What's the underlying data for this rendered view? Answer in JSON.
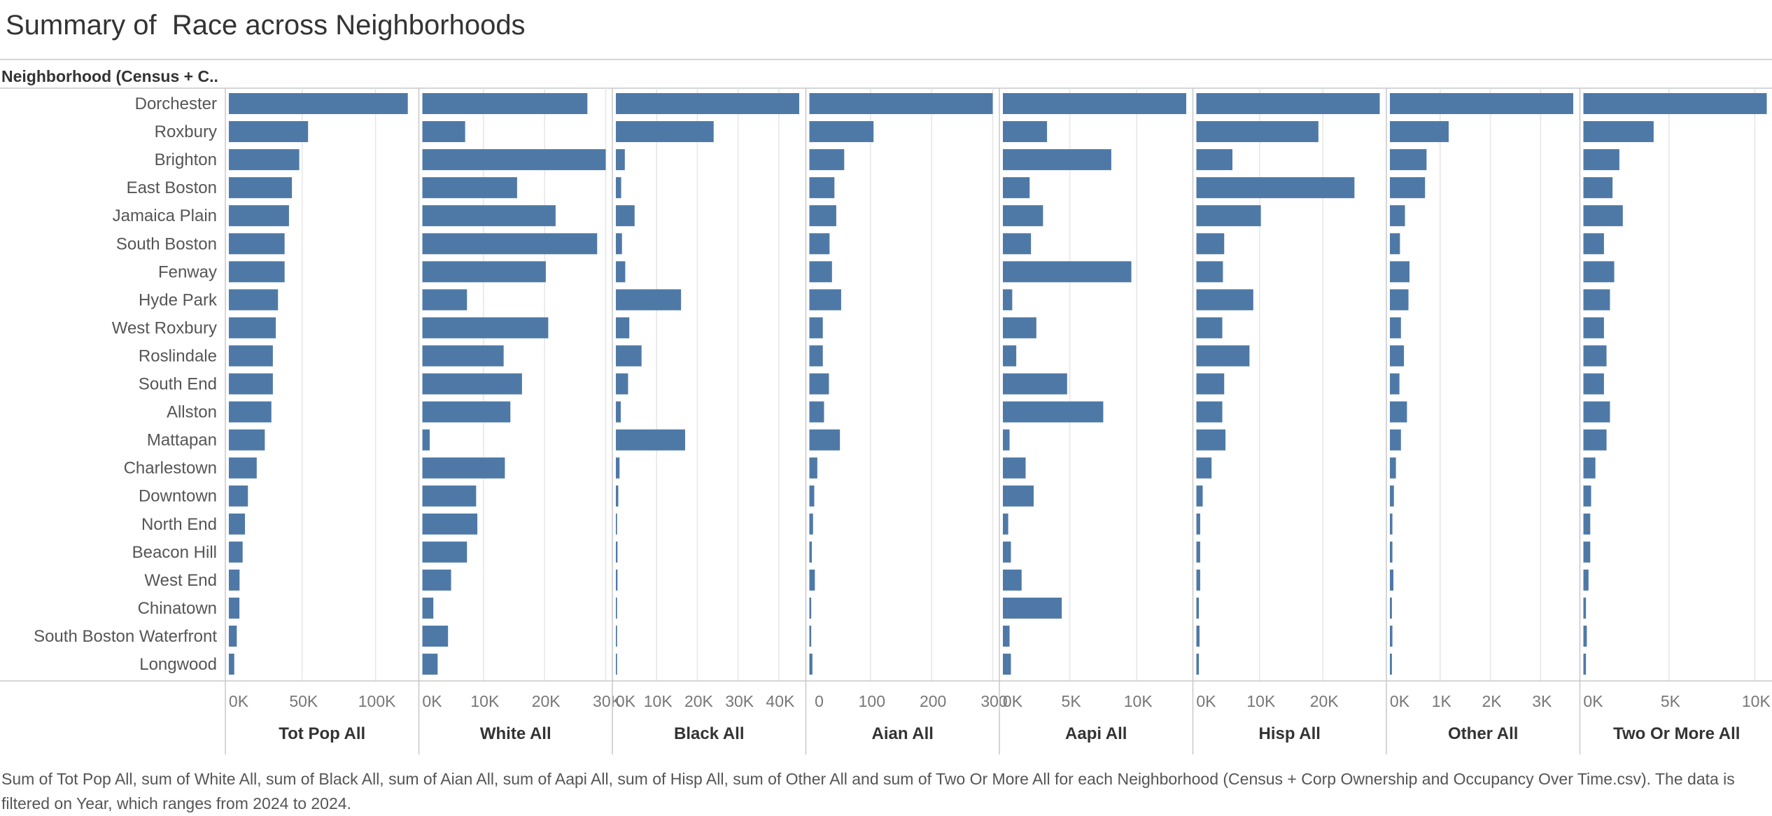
{
  "title": "Summary of  Race across Neighborhoods",
  "caption": "Sum of Tot Pop All, sum of White All, sum of Black All, sum of Aian All, sum of Aapi All, sum of Hisp All, sum of Other All and sum of Two Or More All for each Neighborhood (Census + Corp Ownership and Occupancy Over Time.csv). The data is filtered on Year, which ranges from 2024 to 2024.",
  "colors": {
    "bar": "#4e79a7",
    "grid": "#e6e6e6",
    "axis": "#c8c8c8"
  },
  "chart_data": {
    "type": "bar",
    "orientation": "horizontal",
    "row_header": "Neighborhood (Census + C..",
    "categories": [
      "Dorchester",
      "Roxbury",
      "Brighton",
      "East Boston",
      "Jamaica Plain",
      "South Boston",
      "Fenway",
      "Hyde Park",
      "West Roxbury",
      "Roslindale",
      "South End",
      "Allston",
      "Mattapan",
      "Charlestown",
      "Downtown",
      "North End",
      "Beacon Hill",
      "West End",
      "Chinatown",
      "South Boston Waterfront",
      "Longwood"
    ],
    "series": [
      {
        "name": "Tot Pop All",
        "ticks": [
          {
            "v": 0,
            "label": "0K"
          },
          {
            "v": 50000,
            "label": "50K"
          },
          {
            "v": 100000,
            "label": "100K"
          }
        ],
        "xmax": 125000,
        "values": [
          122000,
          54000,
          48000,
          43000,
          41000,
          38000,
          38000,
          33500,
          32000,
          30000,
          30000,
          29000,
          24500,
          19000,
          13000,
          11000,
          9400,
          7300,
          7200,
          5400,
          3700
        ]
      },
      {
        "name": "White All",
        "ticks": [
          {
            "v": 0,
            "label": "0K"
          },
          {
            "v": 10000,
            "label": "10K"
          },
          {
            "v": 20000,
            "label": "20K"
          },
          {
            "v": 30000,
            "label": "30K"
          }
        ],
        "xmax": 30000,
        "values": [
          27000,
          7000,
          30000,
          15500,
          21800,
          28600,
          20200,
          7300,
          20600,
          13300,
          16300,
          14400,
          1200,
          13500,
          8800,
          9000,
          7300,
          4700,
          1800,
          4200,
          2500
        ]
      },
      {
        "name": "Black All",
        "ticks": [
          {
            "v": 0,
            "label": "0K"
          },
          {
            "v": 10000,
            "label": "10K"
          },
          {
            "v": 20000,
            "label": "20K"
          },
          {
            "v": 30000,
            "label": "30K"
          },
          {
            "v": 40000,
            "label": "40K"
          }
        ],
        "xmax": 45000,
        "values": [
          45000,
          24000,
          2200,
          1300,
          4600,
          1500,
          2300,
          16000,
          3300,
          6300,
          3000,
          1200,
          17000,
          900,
          600,
          300,
          400,
          400,
          300,
          300,
          300
        ]
      },
      {
        "name": "Aian All",
        "ticks": [
          {
            "v": 0,
            "label": "0"
          },
          {
            "v": 100,
            "label": "100"
          },
          {
            "v": 200,
            "label": "200"
          },
          {
            "v": 300,
            "label": "300"
          }
        ],
        "xmax": 300,
        "values": [
          300,
          105,
          57,
          41,
          44,
          33,
          37,
          52,
          22,
          22,
          32,
          24,
          50,
          13,
          8,
          6,
          4,
          9,
          3,
          3,
          5
        ]
      },
      {
        "name": "Aapi All",
        "ticks": [
          {
            "v": 0,
            "label": "0K"
          },
          {
            "v": 5000,
            "label": "5K"
          },
          {
            "v": 10000,
            "label": "10K"
          }
        ],
        "xmax": 13700,
        "values": [
          13700,
          3300,
          8100,
          2000,
          3000,
          2100,
          9600,
          700,
          2500,
          1000,
          4800,
          7500,
          500,
          1700,
          2300,
          400,
          600,
          1400,
          4400,
          500,
          600
        ]
      },
      {
        "name": "Hisp All",
        "ticks": [
          {
            "v": 0,
            "label": "0K"
          },
          {
            "v": 10000,
            "label": "10K"
          },
          {
            "v": 20000,
            "label": "20K"
          }
        ],
        "xmax": 29000,
        "values": [
          29000,
          19300,
          5700,
          25000,
          10200,
          4400,
          4200,
          9000,
          4100,
          8400,
          4400,
          4100,
          4600,
          2400,
          1000,
          600,
          600,
          600,
          400,
          500,
          400
        ]
      },
      {
        "name": "Other All",
        "ticks": [
          {
            "v": 0,
            "label": "0K"
          },
          {
            "v": 1000,
            "label": "1K"
          },
          {
            "v": 2000,
            "label": "2K"
          },
          {
            "v": 3000,
            "label": "3K"
          }
        ],
        "xmax": 3650,
        "values": [
          3650,
          1170,
          730,
          700,
          300,
          200,
          390,
          370,
          220,
          280,
          190,
          340,
          220,
          120,
          80,
          50,
          50,
          70,
          40,
          50,
          40
        ]
      },
      {
        "name": "Two Or More All",
        "ticks": [
          {
            "v": 0,
            "label": "0K"
          },
          {
            "v": 5000,
            "label": "5K"
          },
          {
            "v": 10000,
            "label": "10K"
          }
        ],
        "xmax": 10700,
        "values": [
          10700,
          4100,
          2100,
          1700,
          2300,
          1200,
          1800,
          1550,
          1200,
          1350,
          1200,
          1550,
          1350,
          700,
          450,
          400,
          400,
          300,
          150,
          200,
          150
        ]
      }
    ]
  }
}
